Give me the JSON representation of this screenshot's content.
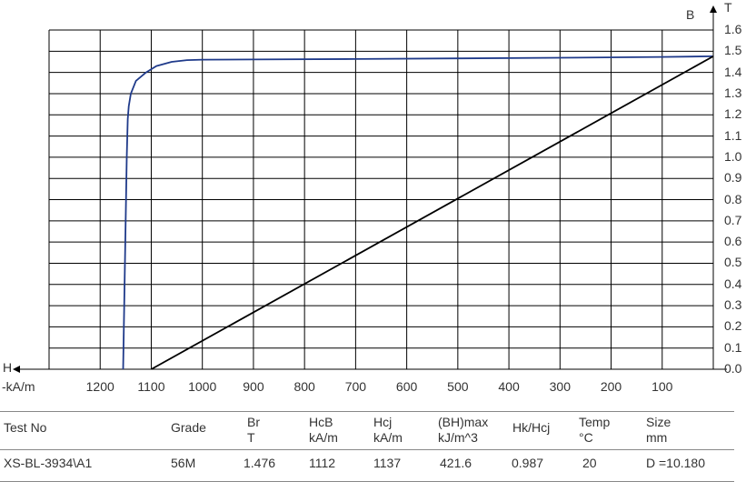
{
  "chart_data": {
    "type": "line",
    "x_axis": {
      "label": "H",
      "unit": "-kA/m",
      "ticks": [
        1200,
        1100,
        1000,
        900,
        800,
        700,
        600,
        500,
        400,
        300,
        200,
        100
      ],
      "range": [
        1300,
        0
      ],
      "reversed": true
    },
    "y_axis": {
      "label": "B",
      "unit": "T",
      "ticks": [
        "0.0",
        "0.1",
        "0.2",
        "0.3",
        "0.4",
        "0.5",
        "0.6",
        "0.7",
        "0.8",
        "0.9",
        "1.0",
        "1.1",
        "1.2",
        "1.3",
        "1.4",
        "1.5",
        "1.6"
      ],
      "range": [
        0.0,
        1.6
      ],
      "position": "right"
    },
    "grid": true,
    "series": [
      {
        "color": "#1f3a8a",
        "x": [
          1155,
          1153,
          1150,
          1148,
          1146,
          1144,
          1140,
          1130,
          1110,
          1090,
          1060,
          1030,
          1000,
          900,
          700,
          500,
          300,
          100,
          0
        ],
        "y": [
          0.0,
          0.3,
          0.7,
          1.0,
          1.18,
          1.24,
          1.3,
          1.36,
          1.4,
          1.43,
          1.45,
          1.458,
          1.46,
          1.461,
          1.463,
          1.466,
          1.469,
          1.473,
          1.476
        ]
      },
      {
        "color": "#000000",
        "x": [
          1100,
          0
        ],
        "y": [
          0.0,
          1.476
        ]
      }
    ]
  },
  "table": {
    "headers": [
      [
        "Test No"
      ],
      [
        "Grade"
      ],
      [
        "Br",
        "T"
      ],
      [
        "HcB",
        "kA/m"
      ],
      [
        "Hcj",
        "kA/m"
      ],
      [
        "(BH)max",
        "kJ/m^3"
      ],
      [
        "Hk/Hcj"
      ],
      [
        "Temp",
        "°C"
      ],
      [
        "Size",
        "mm"
      ]
    ],
    "row": [
      "XS-BL-3934\\A1",
      "56M",
      "1.476",
      "1112",
      "1137",
      "421.6",
      "0.987",
      "20",
      "D =10.180"
    ]
  }
}
